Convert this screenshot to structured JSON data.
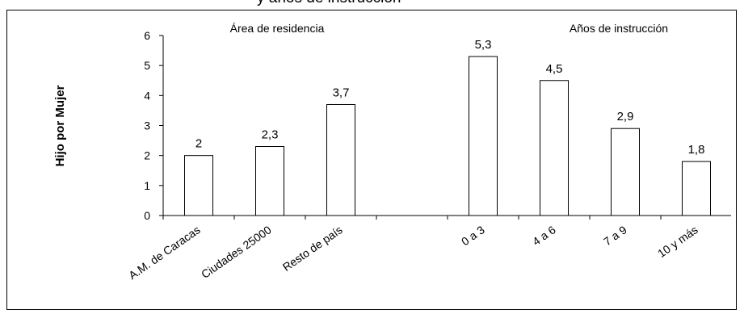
{
  "title_fragment": "y años de instrucción",
  "chart_data": {
    "type": "bar",
    "ylabel": "Hijo por Mujer",
    "ylim": [
      0,
      6
    ],
    "yticks": [
      "0",
      "1",
      "2",
      "3",
      "4",
      "5",
      "6"
    ],
    "grid": false,
    "groups": [
      {
        "label": "Área de residencia",
        "categories": [
          "A.M. de Caracas",
          "Ciudades 25000",
          "Resto de país"
        ],
        "values": [
          2,
          2.3,
          3.7
        ],
        "value_labels": [
          "2",
          "2,3",
          "3,7"
        ]
      },
      {
        "label": "Años de instrucción",
        "categories": [
          "0 a 3",
          "4 a 6",
          "7 a 9",
          "10 y más"
        ],
        "values": [
          5.3,
          4.5,
          2.9,
          1.8
        ],
        "value_labels": [
          "5,3",
          "4,5",
          "2,9",
          "1,8"
        ]
      }
    ],
    "bar_fill": "#ffffff",
    "bar_stroke": "#000000"
  }
}
